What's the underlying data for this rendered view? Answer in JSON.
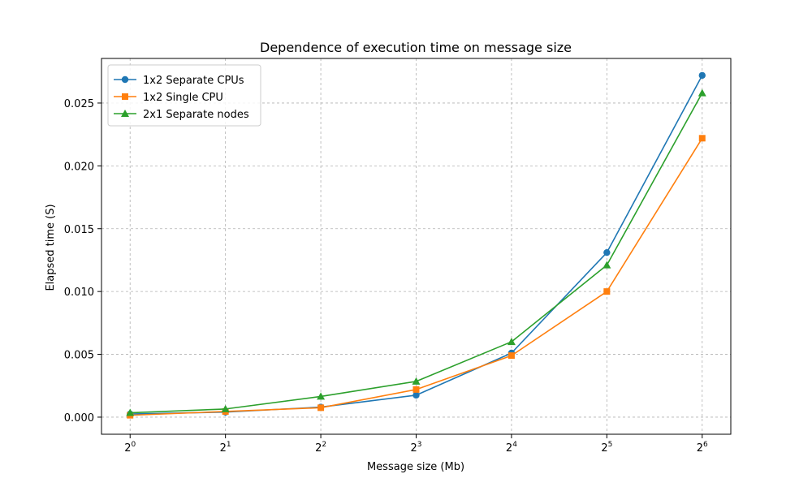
{
  "chart_data": {
    "type": "line",
    "title": "Dependence of execution time on message size",
    "xlabel": "Message size (Mb)",
    "ylabel": "Elapsed time (S)",
    "x_scale": "log2",
    "x": [
      1,
      2,
      4,
      8,
      16,
      32,
      64
    ],
    "x_tick_labels": [
      {
        "base": "2",
        "exp": "0"
      },
      {
        "base": "2",
        "exp": "1"
      },
      {
        "base": "2",
        "exp": "2"
      },
      {
        "base": "2",
        "exp": "3"
      },
      {
        "base": "2",
        "exp": "4"
      },
      {
        "base": "2",
        "exp": "5"
      },
      {
        "base": "2",
        "exp": "6"
      }
    ],
    "y_ticks": [
      0,
      0.005,
      0.01,
      0.015,
      0.02,
      0.025
    ],
    "y_tick_labels": [
      "0.000",
      "0.005",
      "0.010",
      "0.015",
      "0.020",
      "0.025"
    ],
    "ylim": [
      -0.00136,
      0.02855
    ],
    "grid": true,
    "legend_position": "top-left",
    "series": [
      {
        "name": "1x2 Separate CPUs",
        "color": "#1f77b4",
        "marker": "circle",
        "values": [
          0.00025,
          0.0004,
          0.0008,
          0.00175,
          0.0051,
          0.0131,
          0.0272
        ]
      },
      {
        "name": "1x2 Single CPU",
        "color": "#ff7f0e",
        "marker": "square",
        "values": [
          0.00015,
          0.00045,
          0.00075,
          0.0022,
          0.0049,
          0.01,
          0.0222
        ]
      },
      {
        "name": "2x1 Separate nodes",
        "color": "#2ca02c",
        "marker": "triangle",
        "values": [
          0.00035,
          0.00065,
          0.00165,
          0.00285,
          0.006,
          0.0121,
          0.0258
        ]
      }
    ]
  }
}
